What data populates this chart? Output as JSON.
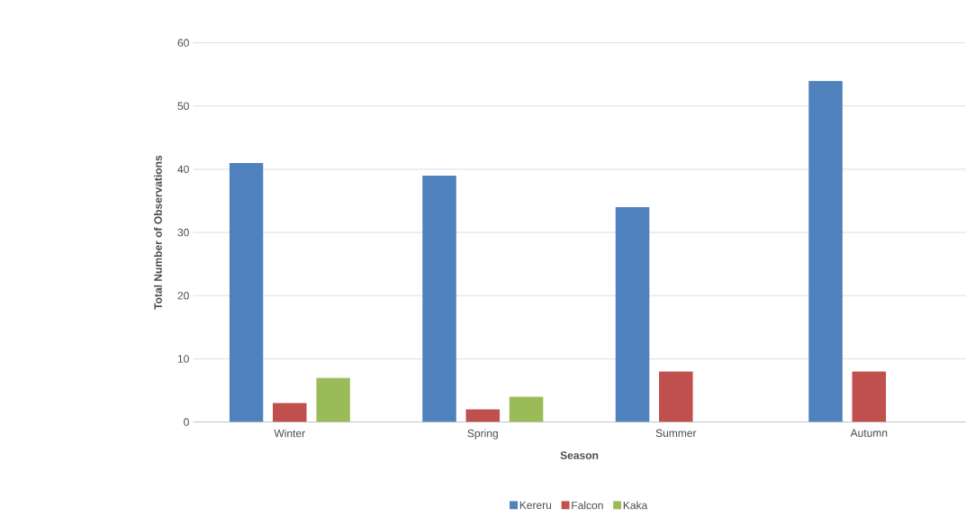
{
  "chart_data": {
    "type": "bar",
    "xlabel": "Season",
    "ylabel": "Total Number of Observations",
    "categories": [
      "Winter",
      "Spring",
      "Summer",
      "Autumn"
    ],
    "series": [
      {
        "name": "Kereru",
        "color": "#4f81bd",
        "values": [
          41,
          39,
          34,
          54
        ]
      },
      {
        "name": "Falcon",
        "color": "#c0504d",
        "values": [
          3,
          2,
          8,
          8
        ]
      },
      {
        "name": "Kaka",
        "color": "#9bbb59",
        "values": [
          7,
          4,
          0,
          0
        ]
      }
    ],
    "ylim": [
      0,
      60
    ],
    "yticks": [
      0,
      10,
      20,
      30,
      40,
      50,
      60
    ],
    "grid": "y",
    "legend": "bottom"
  }
}
